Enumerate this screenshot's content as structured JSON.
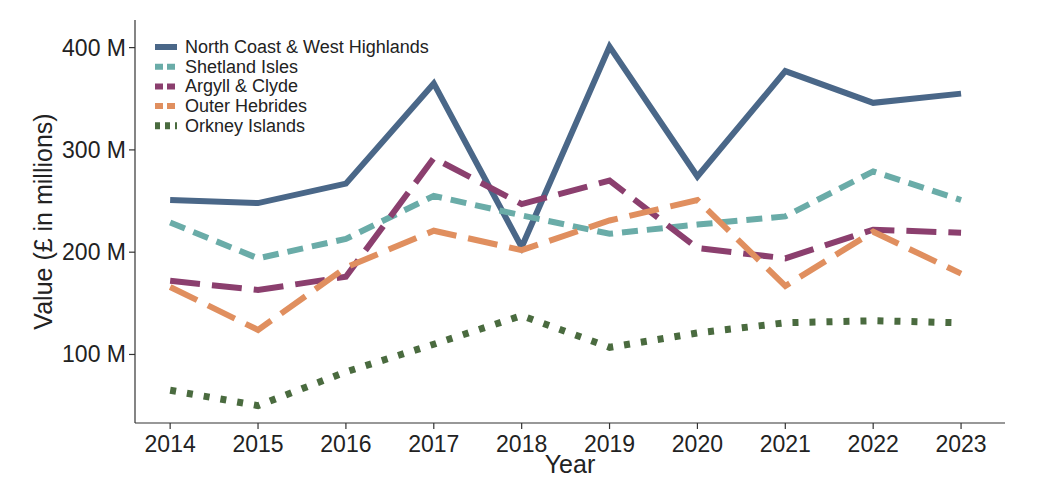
{
  "chart_data": {
    "type": "line",
    "x_label": "Year",
    "y_label": "Value (£ in millions)",
    "x": [
      2014,
      2015,
      2016,
      2017,
      2018,
      2019,
      2020,
      2021,
      2022,
      2023
    ],
    "xlim": [
      2013.6,
      2023.5
    ],
    "xticks": [
      2014,
      2015,
      2016,
      2017,
      2018,
      2019,
      2020,
      2021,
      2022,
      2023
    ],
    "ylim": [
      33,
      427
    ],
    "yticks": [
      {
        "value": 100,
        "label": "100 M"
      },
      {
        "value": 200,
        "label": "200 M"
      },
      {
        "value": 300,
        "label": "300 M"
      },
      {
        "value": 400,
        "label": "400 M"
      }
    ],
    "grid": false,
    "legend": "top-left",
    "series": [
      {
        "name": "North Coast & West Highlands",
        "color": "#4a6788",
        "line_style": "solid",
        "values": [
          251,
          248,
          267,
          365,
          205,
          401,
          274,
          377,
          346,
          355
        ]
      },
      {
        "name": "Shetland Isles",
        "color": "#6aaca8",
        "line_style": "dashed",
        "values": [
          229,
          194,
          213,
          255,
          236,
          218,
          227,
          235,
          279,
          251
        ]
      },
      {
        "name": "Argyll & Clyde",
        "color": "#8b3f6e",
        "line_style": "longdash",
        "values": [
          172,
          163,
          176,
          292,
          247,
          270,
          204,
          194,
          222,
          219
        ]
      },
      {
        "name": "Outer Hebrides",
        "color": "#e08f5f",
        "line_style": "longdash",
        "values": [
          166,
          124,
          185,
          221,
          202,
          231,
          251,
          167,
          220,
          179
        ]
      },
      {
        "name": "Orkney Islands",
        "color": "#4a6b3f",
        "line_style": "dotted",
        "values": [
          65,
          50,
          83,
          110,
          138,
          107,
          121,
          131,
          133,
          131
        ]
      }
    ]
  }
}
